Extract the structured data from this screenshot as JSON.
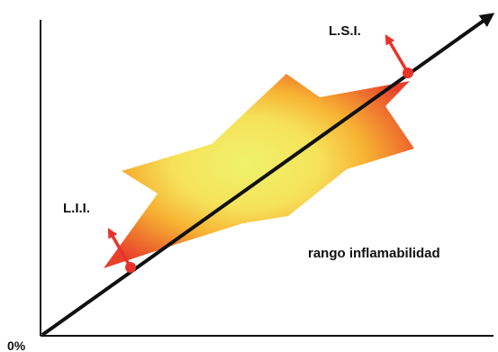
{
  "diagram": {
    "origin_label": "0%",
    "lower_limit_label": "L.I.I.",
    "upper_limit_label": "L.S.I.",
    "range_label": "rango inflamabilidad"
  },
  "colors": {
    "axis": "#111111",
    "marker": "#e8332a",
    "range_center": "#eef26a",
    "range_mid": "#f7b233",
    "range_edge": "#e8402a"
  }
}
